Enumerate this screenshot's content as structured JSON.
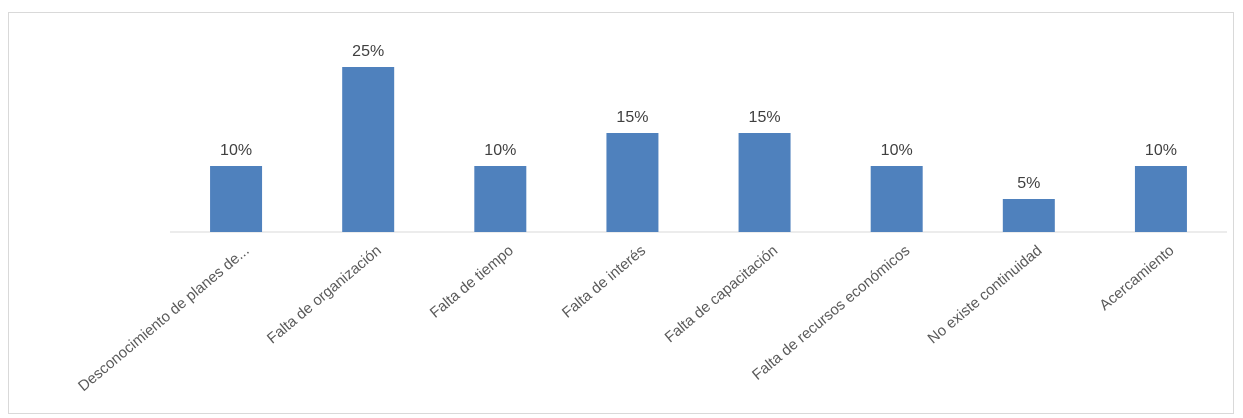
{
  "chart_data": {
    "type": "bar",
    "categories": [
      "Desconocimiento de planes de...",
      "Falta de organización",
      "Falta de tiempo",
      "Falta de interés",
      "Falta de capacitación",
      "Falta de recursos económicos",
      "No existe continuidad",
      "Acercamiento"
    ],
    "values": [
      10,
      25,
      10,
      15,
      15,
      10,
      5,
      10
    ],
    "value_labels": [
      "10%",
      "25%",
      "10%",
      "15%",
      "15%",
      "10%",
      "5%",
      "10%"
    ],
    "title": "",
    "xlabel": "",
    "ylabel": "",
    "ylim": [
      0,
      25
    ],
    "grid": false,
    "legend": "none",
    "bar_color": "#4f81bd"
  }
}
